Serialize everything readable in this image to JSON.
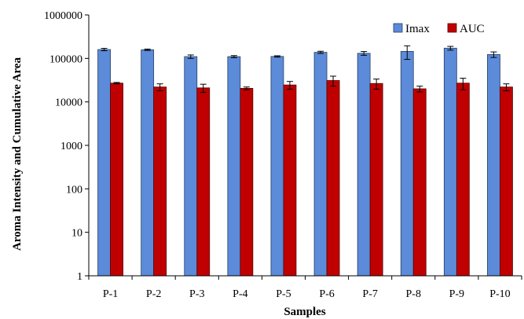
{
  "chart_data": {
    "type": "bar",
    "title": "",
    "xlabel": "Samples",
    "ylabel": "Aroma Intensity and Cumulative Area",
    "yscale": "log",
    "ylim": [
      1,
      1000000
    ],
    "yticks": [
      "1",
      "10",
      "100",
      "1000",
      "10000",
      "100000",
      "1000000"
    ],
    "legend_position": "top-right",
    "grid": false,
    "categories": [
      "P-1",
      "P-2",
      "P-3",
      "P-4",
      "P-5",
      "P-6",
      "P-7",
      "P-8",
      "P-9",
      "P-10"
    ],
    "series": [
      {
        "name": "Imax",
        "color": "#5B8BD9",
        "values": [
          160000,
          158000,
          110000,
          110000,
          111000,
          138000,
          131000,
          145000,
          172000,
          123000
        ],
        "error": [
          10000,
          6000,
          10000,
          6000,
          4000,
          8000,
          13000,
          50000,
          17000,
          18000
        ]
      },
      {
        "name": "AUC",
        "color": "#C00000",
        "values": [
          27000,
          22000,
          21000,
          20500,
          24500,
          31000,
          26500,
          20000,
          27000,
          22000
        ],
        "error": [
          1000,
          4000,
          4500,
          1500,
          5000,
          8000,
          7000,
          3000,
          8000,
          4000
        ]
      }
    ]
  }
}
